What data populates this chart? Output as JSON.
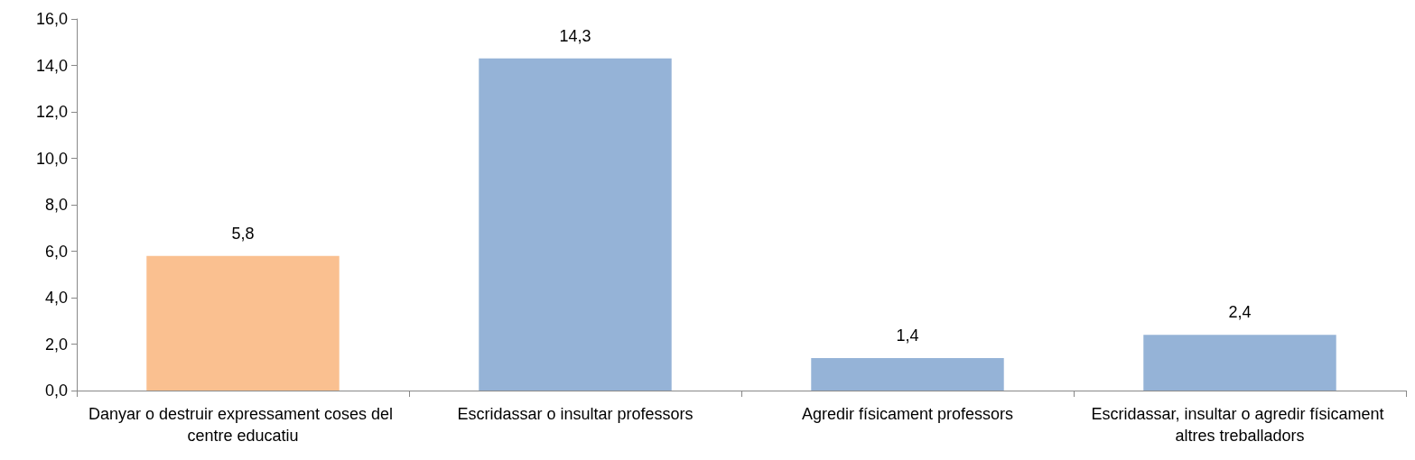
{
  "chart_data": {
    "type": "bar",
    "categories": [
      "Danyar o destruir expressament coses del centre educatiu",
      "Escridassar o insultar professors",
      "Agredir físicament professors",
      "Escridassar, insultar o agredir físicament altres treballadors"
    ],
    "values": [
      5.8,
      14.3,
      1.4,
      2.4
    ],
    "colors": [
      "#fac090",
      "#95b3d7",
      "#95b3d7",
      "#95b3d7"
    ],
    "value_labels": [
      "5,8",
      "14,3",
      "1,4",
      "2,4"
    ],
    "ylim": [
      0,
      16
    ],
    "yticks": [
      {
        "value": 0,
        "label": "0,0"
      },
      {
        "value": 2,
        "label": "2,0"
      },
      {
        "value": 4,
        "label": "4,0"
      },
      {
        "value": 6,
        "label": "6,0"
      },
      {
        "value": 8,
        "label": "8,0"
      },
      {
        "value": 10,
        "label": "10,0"
      },
      {
        "value": 12,
        "label": "12,0"
      },
      {
        "value": 14,
        "label": "14,0"
      },
      {
        "value": 16,
        "label": "16,0"
      }
    ],
    "grid": false
  }
}
